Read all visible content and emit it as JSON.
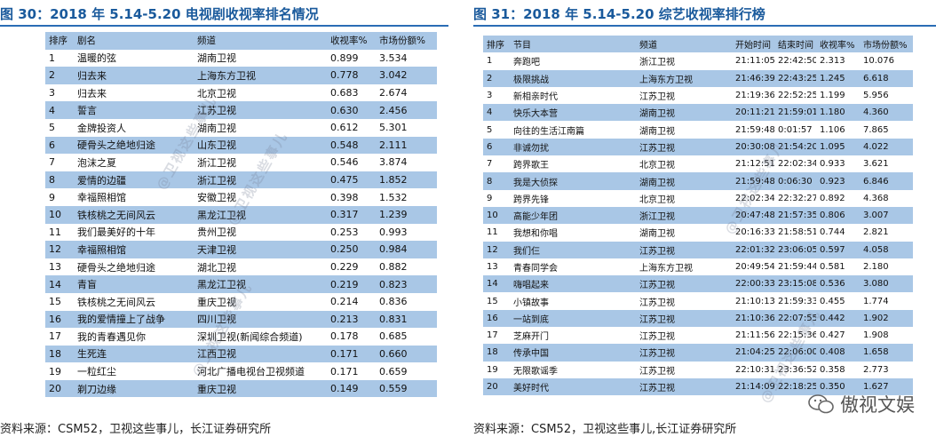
{
  "left": {
    "title": "图 30：2018 年 5.14-5.20 电视剧收视率排名情况",
    "columns": [
      "排序",
      "剧名",
      "频道",
      "收视率%",
      "市场份额%"
    ],
    "rows": [
      [
        "1",
        "温暖的弦",
        "湖南卫视",
        "0.899",
        "3.534"
      ],
      [
        "2",
        "归去来",
        "上海东方卫视",
        "0.778",
        "3.042"
      ],
      [
        "3",
        "归去来",
        "北京卫视",
        "0.683",
        "2.674"
      ],
      [
        "4",
        "誓言",
        "江苏卫视",
        "0.630",
        "2.456"
      ],
      [
        "5",
        "金牌投资人",
        "湖南卫视",
        "0.612",
        "5.301"
      ],
      [
        "6",
        "硬骨头之绝地归途",
        "山东卫视",
        "0.548",
        "2.111"
      ],
      [
        "7",
        "泡沫之夏",
        "浙江卫视",
        "0.546",
        "3.874"
      ],
      [
        "8",
        "爱情的边疆",
        "浙江卫视",
        "0.475",
        "1.852"
      ],
      [
        "9",
        "幸福照相馆",
        "安徽卫视",
        "0.398",
        "1.532"
      ],
      [
        "10",
        "铁核桃之无间风云",
        "黑龙江卫视",
        "0.317",
        "1.239"
      ],
      [
        "11",
        "我们最美好的十年",
        "贵州卫视",
        "0.253",
        "0.993"
      ],
      [
        "12",
        "幸福照相馆",
        "天津卫视",
        "0.250",
        "0.984"
      ],
      [
        "13",
        "硬骨头之绝地归途",
        "湖北卫视",
        "0.229",
        "0.882"
      ],
      [
        "14",
        "青盲",
        "黑龙江卫视",
        "0.219",
        "0.823"
      ],
      [
        "15",
        "铁核桃之无间风云",
        "重庆卫视",
        "0.214",
        "0.836"
      ],
      [
        "16",
        "我的爱情撞上了战争",
        "四川卫视",
        "0.213",
        "0.831"
      ],
      [
        "17",
        "我的青春遇见你",
        "深圳卫视(新闻综合频道)",
        "0.178",
        "0.685"
      ],
      [
        "18",
        "生死连",
        "江西卫视",
        "0.171",
        "0.660"
      ],
      [
        "19",
        "一粒红尘",
        "河北广播电视台卫视频道",
        "0.171",
        "0.659"
      ],
      [
        "20",
        "剃刀边缘",
        "重庆卫视",
        "0.149",
        "0.559"
      ]
    ],
    "source": "资料来源：CSM52，卫视这些事儿，长江证券研究所"
  },
  "right": {
    "title": "图 31：2018 年 5.14-5.20 综艺收视率排行榜",
    "columns": [
      "排序",
      "节目",
      "频道",
      "开始时间",
      "结束时间",
      "收视率%",
      "市场份额%"
    ],
    "rows": [
      [
        "1",
        "奔跑吧",
        "浙江卫视",
        "21:11:05",
        "22:42:50",
        "2.313",
        "10.076"
      ],
      [
        "2",
        "极限挑战",
        "上海东方卫视",
        "21:46:39",
        "22:43:25",
        "1.245",
        "6.618"
      ],
      [
        "3",
        "新相亲时代",
        "江苏卫视",
        "21:19:36",
        "22:52:25",
        "1.199",
        "5.956"
      ],
      [
        "4",
        "快乐大本营",
        "湖南卫视",
        "20:11:21",
        "21:59:01",
        "1.180",
        "4.360"
      ],
      [
        "5",
        "向往的生活江南篇",
        "湖南卫视",
        "21:59:48",
        "0:01:57",
        "1.106",
        "7.865"
      ],
      [
        "6",
        "非诚勿扰",
        "江苏卫视",
        "20:30:08",
        "21:54:20",
        "1.095",
        "4.022"
      ],
      [
        "7",
        "跨界歌王",
        "北京卫视",
        "21:12:51",
        "22:02:34",
        "0.933",
        "3.621"
      ],
      [
        "8",
        "我是大侦探",
        "湖南卫视",
        "21:59:48",
        "0:06:30",
        "0.923",
        "6.846"
      ],
      [
        "9",
        "跨界先锋",
        "北京卫视",
        "22:02:34",
        "22:32:27",
        "0.892",
        "4.368"
      ],
      [
        "10",
        "高能少年团",
        "浙江卫视",
        "20:47:48",
        "21:57:35",
        "0.806",
        "3.007"
      ],
      [
        "11",
        "我想和你唱",
        "湖南卫视",
        "20:16:33",
        "21:58:51",
        "0.744",
        "2.821"
      ],
      [
        "12",
        "我们仨",
        "江苏卫视",
        "22:01:32",
        "23:06:05",
        "0.597",
        "4.058"
      ],
      [
        "13",
        "青春同学会",
        "上海东方卫视",
        "20:49:54",
        "21:59:44",
        "0.581",
        "2.180"
      ],
      [
        "14",
        "嗨唱起来",
        "江苏卫视",
        "22:00:33",
        "23:15:08",
        "0.536",
        "3.080"
      ],
      [
        "15",
        "小镇故事",
        "江苏卫视",
        "21:10:13",
        "21:59:33",
        "0.455",
        "1.774"
      ],
      [
        "16",
        "一站到底",
        "江苏卫视",
        "21:10:36",
        "22:07:55",
        "0.442",
        "1.902"
      ],
      [
        "17",
        "芝麻开门",
        "江苏卫视",
        "21:11:56",
        "22:15:36",
        "0.427",
        "1.908"
      ],
      [
        "18",
        "传承中国",
        "江苏卫视",
        "21:04:25",
        "22:06:00",
        "0.408",
        "1.658"
      ],
      [
        "19",
        "无限歌谣季",
        "江苏卫视",
        "22:10:31",
        "23:36:52",
        "0.358",
        "2.773"
      ],
      [
        "20",
        "美好时代",
        "江苏卫视",
        "21:14:09",
        "22:18:25",
        "0.350",
        "1.627"
      ]
    ],
    "source": "资料来源：CSM52，卫视这些事儿,长江证券研究所"
  },
  "watermark": "@卫视这些事儿",
  "brand": "傲视文娱"
}
